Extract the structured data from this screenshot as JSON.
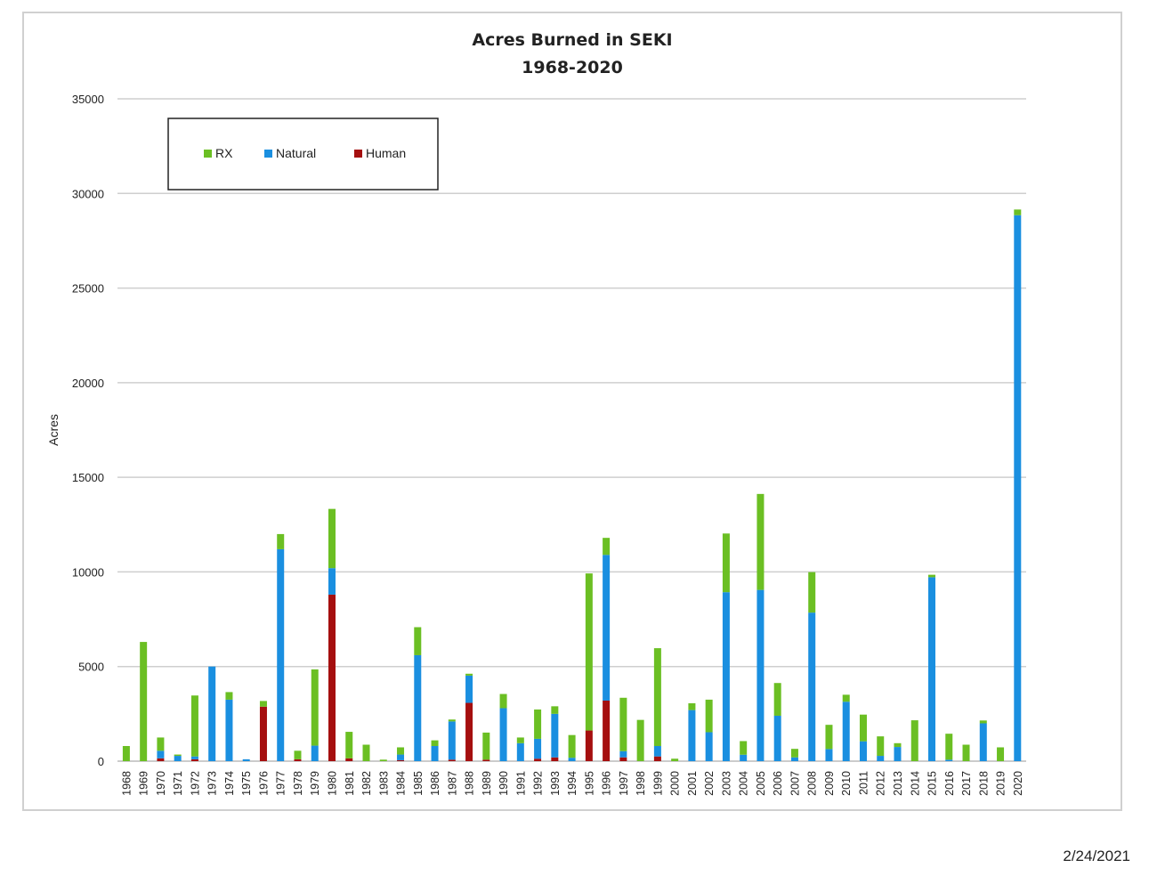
{
  "chart_data": {
    "type": "bar",
    "stacked": true,
    "title": [
      "Acres Burned in SEKI",
      "1968-2020"
    ],
    "ylabel": "Acres",
    "xlabel": "",
    "ylim": [
      0,
      35000
    ],
    "yticks": [
      0,
      5000,
      10000,
      15000,
      20000,
      25000,
      30000,
      35000
    ],
    "grid": true,
    "legend_placement": "top-left",
    "categories": [
      "1968",
      "1969",
      "1970",
      "1971",
      "1972",
      "1973",
      "1974",
      "1975",
      "1976",
      "1977",
      "1978",
      "1979",
      "1980",
      "1981",
      "1982",
      "1983",
      "1984",
      "1985",
      "1986",
      "1987",
      "1988",
      "1989",
      "1990",
      "1991",
      "1992",
      "1993",
      "1994",
      "1995",
      "1996",
      "1997",
      "1998",
      "1999",
      "2000",
      "2001",
      "2002",
      "2003",
      "2004",
      "2005",
      "2006",
      "2007",
      "2008",
      "2009",
      "2010",
      "2011",
      "2012",
      "2013",
      "2014",
      "2015",
      "2016",
      "2017",
      "2018",
      "2019",
      "2020"
    ],
    "series": [
      {
        "name": "Human",
        "color": "#a50f0f",
        "values": [
          0,
          0,
          150,
          0,
          100,
          0,
          0,
          0,
          2880,
          0,
          100,
          0,
          8800,
          150,
          0,
          0,
          50,
          0,
          0,
          80,
          3080,
          80,
          0,
          0,
          130,
          200,
          0,
          1620,
          3200,
          200,
          0,
          250,
          0,
          0,
          0,
          0,
          0,
          0,
          0,
          0,
          0,
          0,
          0,
          0,
          0,
          0,
          0,
          0,
          0,
          0,
          0,
          0,
          0
        ]
      },
      {
        "name": "Natural",
        "color": "#1a8fe0",
        "values": [
          0,
          0,
          400,
          280,
          150,
          5000,
          3250,
          100,
          0,
          11200,
          0,
          820,
          1400,
          0,
          0,
          0,
          300,
          5600,
          800,
          2020,
          1440,
          0,
          2800,
          950,
          1050,
          2300,
          180,
          0,
          7700,
          330,
          0,
          550,
          0,
          2700,
          1530,
          8930,
          340,
          9050,
          2400,
          200,
          7850,
          640,
          3140,
          1050,
          280,
          750,
          0,
          9720,
          80,
          0,
          2000,
          0,
          28850
        ]
      },
      {
        "name": "RX",
        "color": "#6bbf23",
        "values": [
          800,
          6300,
          700,
          70,
          3220,
          0,
          400,
          0,
          300,
          800,
          450,
          4030,
          3130,
          1400,
          870,
          80,
          380,
          1480,
          300,
          100,
          100,
          1430,
          750,
          300,
          1550,
          400,
          1200,
          8300,
          900,
          2820,
          2180,
          5170,
          130,
          360,
          1720,
          3100,
          720,
          5070,
          1730,
          450,
          2140,
          1280,
          370,
          1410,
          1030,
          200,
          2160,
          130,
          1370,
          870,
          150,
          730,
          300
        ]
      }
    ]
  },
  "legend": {
    "items": [
      "RX",
      "Natural",
      "Human"
    ]
  },
  "date_stamp": "2/24/2021"
}
